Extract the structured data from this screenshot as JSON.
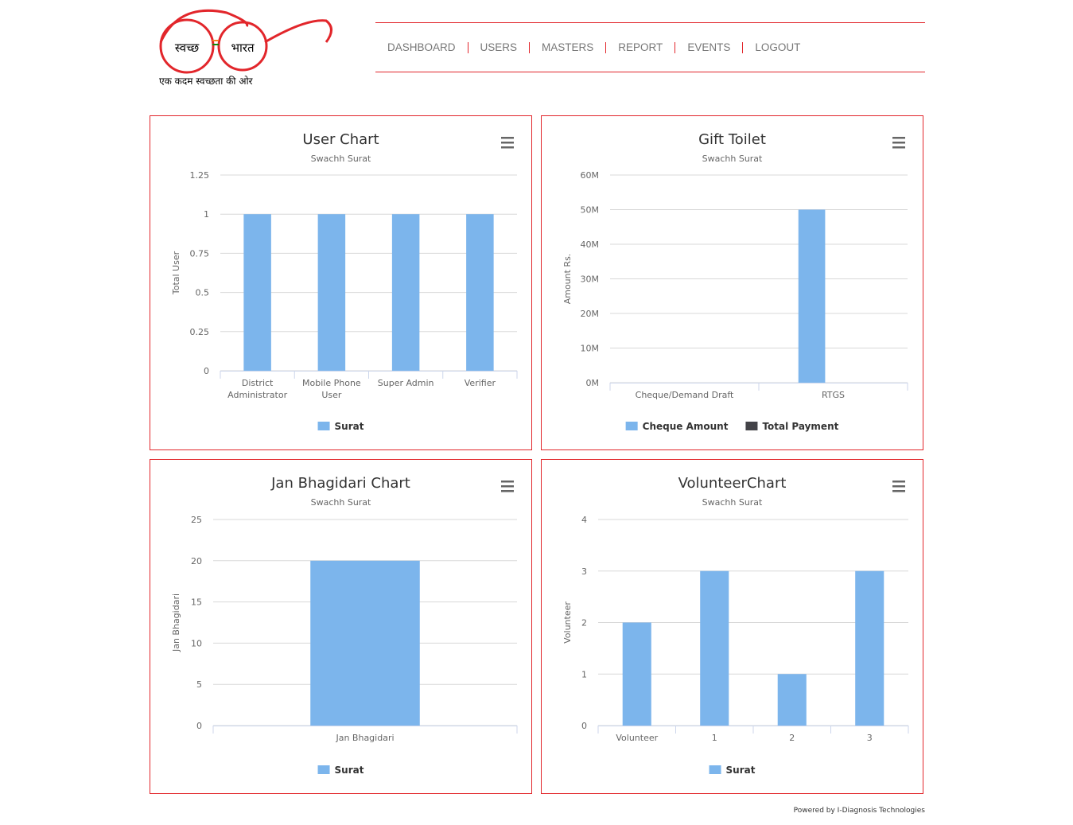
{
  "header": {
    "logo": {
      "left": "स्वच्छ",
      "right": "भारत",
      "tagline": "एक कदम स्वच्छता की ओर"
    },
    "nav": [
      "DASHBOARD",
      "USERS",
      "MASTERS",
      "REPORT",
      "EVENTS",
      "LOGOUT"
    ]
  },
  "chart_data": [
    {
      "type": "bar",
      "title": "User Chart",
      "subtitle": "Swachh Surat",
      "y_label": "Total User",
      "categories": [
        "District Administrator",
        "Mobile Phone User",
        "Super Admin",
        "Verifier"
      ],
      "series": [
        {
          "name": "Surat",
          "color": "#7cb5ec",
          "values": [
            1,
            1,
            1,
            1
          ]
        }
      ],
      "ylim": [
        0,
        1.25
      ],
      "yticks": [
        0,
        0.25,
        0.5,
        0.75,
        1,
        1.25
      ],
      "grid": true,
      "legend": "bottom"
    },
    {
      "type": "bar",
      "title": "Gift Toilet",
      "subtitle": "Swachh Surat",
      "y_label": "Amount Rs.",
      "categories": [
        "Cheque/Demand Draft",
        "RTGS"
      ],
      "series": [
        {
          "name": "Cheque Amount",
          "color": "#7cb5ec",
          "values": [
            0,
            50000000
          ]
        },
        {
          "name": "Total Payment",
          "color": "#434348",
          "values": [
            0,
            0
          ]
        }
      ],
      "ylim": [
        0,
        60000000
      ],
      "yticks": [
        {
          "value": 0,
          "label": "0M"
        },
        {
          "value": 10000000,
          "label": "10M"
        },
        {
          "value": 20000000,
          "label": "20M"
        },
        {
          "value": 30000000,
          "label": "30M"
        },
        {
          "value": 40000000,
          "label": "40M"
        },
        {
          "value": 50000000,
          "label": "50M"
        },
        {
          "value": 60000000,
          "label": "60M"
        }
      ],
      "grid": true,
      "legend": "bottom"
    },
    {
      "type": "bar",
      "title": "Jan Bhagidari Chart",
      "subtitle": "Swachh Surat",
      "y_label": "Jan Bhagidari",
      "categories": [
        "Jan Bhagidari"
      ],
      "series": [
        {
          "name": "Surat",
          "color": "#7cb5ec",
          "values": [
            20
          ]
        }
      ],
      "ylim": [
        0,
        25
      ],
      "yticks": [
        0,
        5,
        10,
        15,
        20,
        25
      ],
      "grid": true,
      "legend": "bottom"
    },
    {
      "type": "bar",
      "title": "VolunteerChart",
      "subtitle": "Swachh Surat",
      "y_label": "Volunteer",
      "categories": [
        "Volunteer",
        "1",
        "2",
        "3"
      ],
      "series": [
        {
          "name": "Surat",
          "color": "#7cb5ec",
          "values": [
            2,
            3,
            1,
            3
          ]
        }
      ],
      "ylim": [
        0,
        4
      ],
      "yticks": [
        0,
        1,
        2,
        3,
        4
      ],
      "grid": true,
      "legend": "bottom"
    }
  ],
  "footer": "Powered by I-Diagnosis Technologies"
}
